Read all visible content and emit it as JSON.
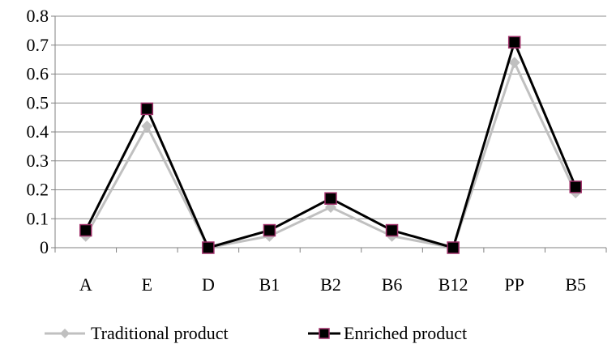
{
  "chart_data": {
    "type": "line",
    "categories": [
      "A",
      "E",
      "D",
      "B1",
      "B2",
      "B6",
      "B12",
      "PP",
      "B5"
    ],
    "ylim": [
      0,
      0.8
    ],
    "yticks": [
      0,
      0.1,
      0.2,
      0.3,
      0.4,
      0.5,
      0.6,
      0.7,
      0.8
    ],
    "ytick_labels": [
      "0",
      "0.1",
      "0.2",
      "0.3",
      "0.4",
      "0.5",
      "0.6",
      "0.7",
      "0.8"
    ],
    "grid": "horizontal",
    "legend_position": "bottom",
    "series": [
      {
        "name": "Traditional product",
        "values": [
          0.04,
          0.42,
          0.0,
          0.04,
          0.14,
          0.04,
          0.0,
          0.64,
          0.19
        ],
        "color": "#c0c0c0",
        "marker": "diamond"
      },
      {
        "name": "Enriched product",
        "values": [
          0.06,
          0.48,
          0.0,
          0.06,
          0.17,
          0.06,
          0.0,
          0.71,
          0.21
        ],
        "color": "#000000",
        "marker": "square",
        "marker_edge_color": "#a0306a"
      }
    ]
  }
}
